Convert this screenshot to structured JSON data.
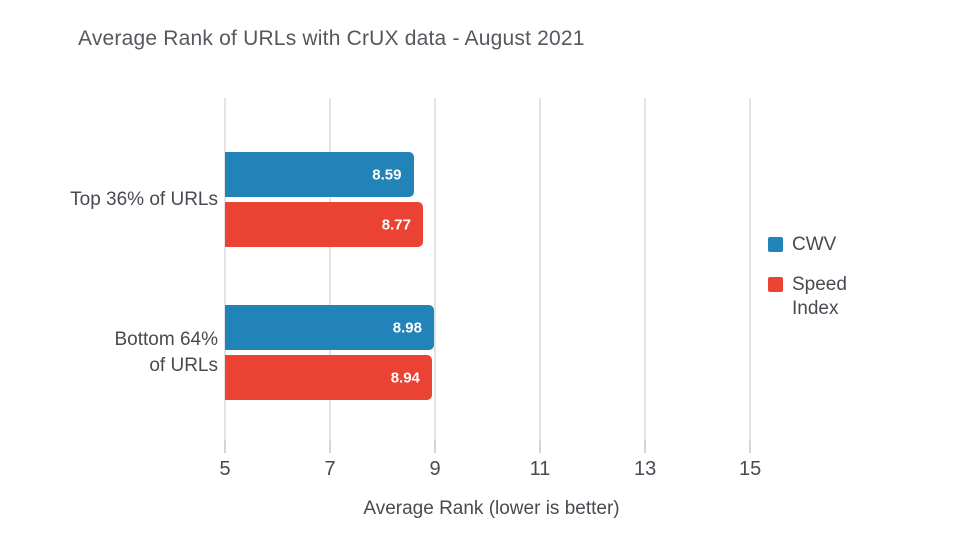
{
  "styles": {
    "background": "#ffffff",
    "title_color": "#55585d",
    "text_color": "#474b51",
    "gridline_color": "#e3e3e3",
    "tick_color": "#d3d6d9",
    "value_label_color": "#ffffff",
    "cwv_color": "#2183b8",
    "speed_index_color": "#ea4334"
  },
  "chart_data": {
    "type": "bar",
    "orientation": "horizontal",
    "title": "Average Rank of URLs with CrUX data - August 2021",
    "xlabel": "Average Rank (lower is better)",
    "categories": [
      {
        "label": "Top 36% of URLs",
        "lines": [
          "Top 36% of URLs"
        ]
      },
      {
        "label": "Bottom 64% of URLs",
        "lines": [
          "Bottom 64%",
          "of URLs"
        ]
      }
    ],
    "series": [
      {
        "name": "CWV",
        "color": "#2183b8",
        "values": [
          8.59,
          8.98
        ]
      },
      {
        "name": "Speed Index",
        "color": "#ea4334",
        "values": [
          8.77,
          8.94
        ]
      }
    ],
    "value_labels": [
      [
        "8.59",
        "8.98"
      ],
      [
        "8.77",
        "8.94"
      ]
    ],
    "xticks": [
      5,
      7,
      9,
      11,
      13,
      15
    ],
    "xlim": [
      5,
      15.15
    ],
    "grid": "vertical-only",
    "legend_position": "right"
  }
}
